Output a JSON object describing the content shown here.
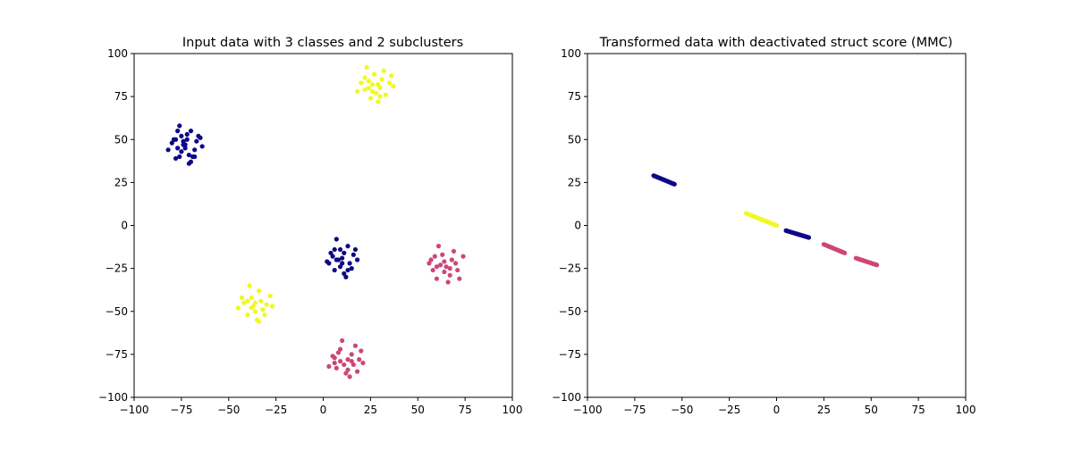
{
  "colors": {
    "class_navy": "#0d0887",
    "class_pink": "#cc4778",
    "class_yellow": "#f0f921",
    "axis": "#000000",
    "background": "#ffffff"
  },
  "chart_data": [
    {
      "type": "scatter",
      "title": "Input data with 3 classes and 2 subclusters",
      "xlabel": "",
      "ylabel": "",
      "xlim": [
        -100,
        100
      ],
      "ylim": [
        -100,
        100
      ],
      "xticks": [
        -100,
        -75,
        -50,
        -25,
        0,
        25,
        50,
        75,
        100
      ],
      "yticks": [
        -100,
        -75,
        -50,
        -25,
        0,
        25,
        50,
        75,
        100
      ],
      "grid": false,
      "series": [
        {
          "color": "#0d0887",
          "points": [
            [
              -80,
              48
            ],
            [
              -78,
              50
            ],
            [
              -77,
              55
            ],
            [
              -76,
              58
            ],
            [
              -75,
              52
            ],
            [
              -74,
              47
            ],
            [
              -73,
              45
            ],
            [
              -72,
              50
            ],
            [
              -71,
              41
            ],
            [
              -70,
              37
            ],
            [
              -69,
              40
            ],
            [
              -68,
              44
            ],
            [
              -67,
              49
            ],
            [
              -66,
              52
            ],
            [
              -64,
              46
            ],
            [
              -77,
              45
            ],
            [
              -79,
              50
            ],
            [
              -82,
              44
            ],
            [
              -75,
              43
            ],
            [
              -72,
              53
            ],
            [
              -70,
              55
            ],
            [
              -76,
              40
            ],
            [
              -68,
              40
            ],
            [
              -71,
              36
            ],
            [
              -74,
              49
            ],
            [
              -78,
              39
            ],
            [
              -65,
              51
            ],
            [
              -73,
              47
            ],
            [
              3,
              -22
            ],
            [
              4,
              -16
            ],
            [
              5,
              -18
            ],
            [
              6,
              -14
            ],
            [
              7,
              -8
            ],
            [
              8,
              -20
            ],
            [
              9,
              -24
            ],
            [
              10,
              -19
            ],
            [
              11,
              -28
            ],
            [
              12,
              -30
            ],
            [
              13,
              -12
            ],
            [
              14,
              -22
            ],
            [
              15,
              -25
            ],
            [
              16,
              -17
            ],
            [
              17,
              -14
            ],
            [
              18,
              -20
            ],
            [
              6,
              -26
            ],
            [
              9,
              -14
            ],
            [
              11,
              -16
            ],
            [
              2,
              -21
            ],
            [
              13,
              -26
            ],
            [
              7,
              -20
            ],
            [
              10,
              -22
            ]
          ]
        },
        {
          "color": "#f0f921",
          "points": [
            [
              18,
              78
            ],
            [
              20,
              83
            ],
            [
              22,
              86
            ],
            [
              23,
              92
            ],
            [
              24,
              80
            ],
            [
              25,
              74
            ],
            [
              26,
              82
            ],
            [
              27,
              88
            ],
            [
              28,
              77
            ],
            [
              29,
              72
            ],
            [
              30,
              80
            ],
            [
              31,
              85
            ],
            [
              32,
              90
            ],
            [
              33,
              76
            ],
            [
              35,
              83
            ],
            [
              36,
              87
            ],
            [
              37,
              81
            ],
            [
              22,
              79
            ],
            [
              26,
              78
            ],
            [
              30,
              75
            ],
            [
              24,
              84
            ],
            [
              29,
              82
            ],
            [
              -45,
              -48
            ],
            [
              -42,
              -45
            ],
            [
              -40,
              -52
            ],
            [
              -39,
              -35
            ],
            [
              -38,
              -42
            ],
            [
              -37,
              -47
            ],
            [
              -36,
              -50
            ],
            [
              -35,
              -55
            ],
            [
              -34,
              -38
            ],
            [
              -33,
              -44
            ],
            [
              -32,
              -49
            ],
            [
              -30,
              -46
            ],
            [
              -28,
              -41
            ],
            [
              -27,
              -47
            ],
            [
              -43,
              -42
            ],
            [
              -36,
              -45
            ],
            [
              -31,
              -52
            ],
            [
              -38,
              -48
            ],
            [
              -34,
              -56
            ],
            [
              -40,
              -44
            ]
          ]
        },
        {
          "color": "#cc4778",
          "points": [
            [
              56,
              -22
            ],
            [
              57,
              -20
            ],
            [
              58,
              -26
            ],
            [
              59,
              -18
            ],
            [
              60,
              -31
            ],
            [
              61,
              -12
            ],
            [
              62,
              -23
            ],
            [
              63,
              -17
            ],
            [
              64,
              -27
            ],
            [
              65,
              -24
            ],
            [
              66,
              -33
            ],
            [
              67,
              -29
            ],
            [
              68,
              -20
            ],
            [
              69,
              -15
            ],
            [
              70,
              -22
            ],
            [
              71,
              -26
            ],
            [
              72,
              -31
            ],
            [
              74,
              -18
            ],
            [
              60,
              -24
            ],
            [
              64,
              -21
            ],
            [
              67,
              -25
            ],
            [
              3,
              -82
            ],
            [
              5,
              -76
            ],
            [
              6,
              -80
            ],
            [
              7,
              -83
            ],
            [
              8,
              -74
            ],
            [
              9,
              -79
            ],
            [
              10,
              -67
            ],
            [
              11,
              -81
            ],
            [
              12,
              -86
            ],
            [
              13,
              -78
            ],
            [
              14,
              -88
            ],
            [
              15,
              -75
            ],
            [
              16,
              -81
            ],
            [
              17,
              -70
            ],
            [
              18,
              -85
            ],
            [
              19,
              -78
            ],
            [
              20,
              -73
            ],
            [
              21,
              -80
            ],
            [
              9,
              -72
            ],
            [
              13,
              -84
            ],
            [
              6,
              -77
            ],
            [
              15,
              -79
            ]
          ]
        }
      ]
    },
    {
      "type": "scatter",
      "title": "Transformed data with deactivated struct score (MMC)",
      "xlabel": "",
      "ylabel": "",
      "xlim": [
        -100,
        100
      ],
      "ylim": [
        -100,
        100
      ],
      "xticks": [
        -100,
        -75,
        -50,
        -25,
        0,
        25,
        50,
        75,
        100
      ],
      "yticks": [
        -100,
        -75,
        -50,
        -25,
        0,
        25,
        50,
        75,
        100
      ],
      "grid": false,
      "series": [
        {
          "color": "#0d0887",
          "segments": [
            [
              -65,
              29,
              -54,
              24,
              18
            ],
            [
              5,
              -3,
              17,
              -7,
              18
            ]
          ]
        },
        {
          "color": "#f0f921",
          "segments": [
            [
              -16,
              7,
              0,
              0,
              22
            ]
          ]
        },
        {
          "color": "#cc4778",
          "segments": [
            [
              25,
              -11,
              36,
              -16,
              16
            ],
            [
              42,
              -19,
              53,
              -23,
              16
            ]
          ]
        }
      ]
    }
  ]
}
